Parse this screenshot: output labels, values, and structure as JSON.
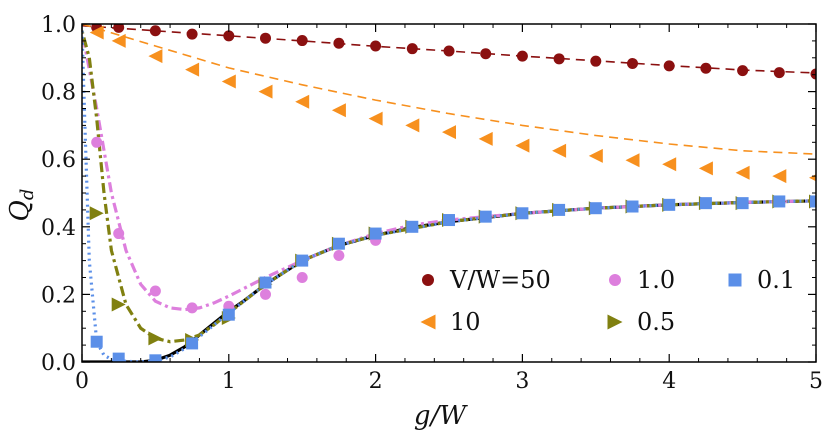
{
  "chart_data": {
    "type": "scatter",
    "title": "",
    "xlabel": "g/W",
    "ylabel": "Q_d",
    "xlim": [
      0,
      5
    ],
    "ylim": [
      0,
      1
    ],
    "x_ticks": [
      "0",
      "1",
      "2",
      "3",
      "4",
      "5"
    ],
    "y_ticks": [
      "0.0",
      "0.2",
      "0.4",
      "0.6",
      "0.8",
      "1.0"
    ],
    "legend_position": "lower-right",
    "series": [
      {
        "name": "V/W=50",
        "legend_label": "V/W=50",
        "marker": "circle",
        "color": "#8b1010",
        "x": [
          0.1,
          0.25,
          0.5,
          0.75,
          1.0,
          1.25,
          1.5,
          1.75,
          2.0,
          2.25,
          2.5,
          2.75,
          3.0,
          3.25,
          3.5,
          3.75,
          4.0,
          4.25,
          4.5,
          4.75,
          5.0
        ],
        "values": [
          0.99,
          0.99,
          0.98,
          0.97,
          0.965,
          0.958,
          0.951,
          0.943,
          0.935,
          0.927,
          0.92,
          0.912,
          0.905,
          0.897,
          0.89,
          0.883,
          0.876,
          0.869,
          0.862,
          0.856,
          0.852
        ],
        "line_x": [
          0,
          0.5,
          1.0,
          1.5,
          2.0,
          2.5,
          3.0,
          3.5,
          4.0,
          4.5,
          5.0
        ],
        "line_y": [
          0.995,
          0.98,
          0.965,
          0.95,
          0.934,
          0.92,
          0.905,
          0.891,
          0.877,
          0.864,
          0.855
        ]
      },
      {
        "name": "10",
        "legend_label": "10",
        "marker": "triangle-left",
        "color": "#f7901e",
        "x": [
          0.1,
          0.25,
          0.5,
          0.75,
          1.0,
          1.25,
          1.5,
          1.75,
          2.0,
          2.25,
          2.5,
          2.75,
          3.0,
          3.25,
          3.5,
          3.75,
          4.0,
          4.25,
          4.5,
          4.75,
          5.0
        ],
        "values": [
          0.975,
          0.95,
          0.905,
          0.865,
          0.83,
          0.8,
          0.77,
          0.745,
          0.72,
          0.7,
          0.68,
          0.66,
          0.64,
          0.625,
          0.61,
          0.597,
          0.585,
          0.573,
          0.56,
          0.55,
          0.545
        ],
        "line_x": [
          0,
          0.5,
          1.0,
          1.5,
          2.0,
          2.5,
          3.0,
          3.5,
          4.0,
          4.5,
          5.0
        ],
        "line_y": [
          1.0,
          0.935,
          0.87,
          0.82,
          0.775,
          0.735,
          0.7,
          0.67,
          0.645,
          0.625,
          0.615
        ]
      },
      {
        "name": "1.0",
        "legend_label": "1.0",
        "marker": "circle",
        "color": "#dd7fdd",
        "x": [
          0.1,
          0.25,
          0.5,
          0.75,
          1.0,
          1.25,
          1.5,
          1.75,
          2.0,
          2.25,
          2.5,
          2.75,
          3.0,
          3.25,
          3.5,
          3.75,
          4.0,
          4.25,
          4.5,
          4.75,
          5.0
        ],
        "values": [
          0.65,
          0.38,
          0.21,
          0.16,
          0.165,
          0.2,
          0.25,
          0.315,
          0.36,
          0.4,
          0.42,
          0.43,
          0.44,
          0.45,
          0.455,
          0.46,
          0.465,
          0.47,
          0.47,
          0.475,
          0.475
        ],
        "line_x": [
          0,
          0.1,
          0.2,
          0.3,
          0.4,
          0.5,
          0.6,
          0.7,
          0.8,
          0.9,
          1.0,
          1.25,
          1.5,
          1.75,
          2.0,
          2.25,
          2.5,
          3.0,
          3.5,
          4.0,
          4.5,
          5.0
        ],
        "line_y": [
          0.98,
          0.75,
          0.5,
          0.33,
          0.23,
          0.18,
          0.16,
          0.155,
          0.16,
          0.175,
          0.195,
          0.25,
          0.3,
          0.345,
          0.38,
          0.405,
          0.42,
          0.44,
          0.455,
          0.465,
          0.472,
          0.477
        ]
      },
      {
        "name": "0.5",
        "legend_label": "0.5",
        "marker": "triangle-right",
        "color": "#808010",
        "x": [
          0.1,
          0.25,
          0.5,
          0.75,
          1.0,
          1.25,
          1.5,
          1.75,
          2.0,
          2.25,
          2.5,
          2.75,
          3.0,
          3.25,
          3.5,
          3.75,
          4.0,
          4.25,
          4.5,
          4.75,
          5.0
        ],
        "values": [
          0.44,
          0.17,
          0.07,
          0.065,
          0.13,
          0.23,
          0.3,
          0.35,
          0.38,
          0.4,
          0.42,
          0.43,
          0.44,
          0.45,
          0.455,
          0.46,
          0.465,
          0.47,
          0.47,
          0.475,
          0.475
        ],
        "line_x": [
          0,
          0.05,
          0.1,
          0.15,
          0.2,
          0.3,
          0.4,
          0.5,
          0.6,
          0.7,
          0.8,
          0.9,
          1.0,
          1.25,
          1.5,
          1.75,
          2.0,
          2.5,
          3.0,
          3.5,
          4.0,
          4.5,
          5.0
        ],
        "line_y": [
          0.98,
          0.9,
          0.72,
          0.5,
          0.33,
          0.17,
          0.1,
          0.07,
          0.06,
          0.065,
          0.08,
          0.11,
          0.145,
          0.23,
          0.3,
          0.345,
          0.375,
          0.415,
          0.44,
          0.455,
          0.465,
          0.472,
          0.477
        ]
      },
      {
        "name": "0.1",
        "legend_label": "0.1",
        "marker": "square",
        "color": "#5b8fe8",
        "x": [
          0.1,
          0.25,
          0.5,
          0.75,
          1.0,
          1.25,
          1.5,
          1.75,
          2.0,
          2.25,
          2.5,
          2.75,
          3.0,
          3.25,
          3.5,
          3.75,
          4.0,
          4.25,
          4.5,
          4.75,
          5.0
        ],
        "values": [
          0.06,
          0.01,
          0.005,
          0.055,
          0.14,
          0.235,
          0.3,
          0.35,
          0.38,
          0.4,
          0.42,
          0.43,
          0.44,
          0.45,
          0.455,
          0.46,
          0.465,
          0.47,
          0.47,
          0.475,
          0.475
        ],
        "line_x": [
          0,
          0.02,
          0.05,
          0.1,
          0.15,
          0.2,
          0.3,
          0.4,
          0.5,
          0.6,
          0.7,
          0.8,
          0.9,
          1.0,
          1.25,
          1.5,
          1.75,
          2.0,
          2.5,
          3.0,
          3.5,
          4.0,
          4.5,
          5.0
        ],
        "line_y": [
          0.98,
          0.7,
          0.3,
          0.06,
          0.02,
          0.008,
          0.002,
          0.0,
          0.003,
          0.015,
          0.04,
          0.075,
          0.11,
          0.145,
          0.23,
          0.3,
          0.345,
          0.375,
          0.415,
          0.44,
          0.455,
          0.465,
          0.472,
          0.477
        ]
      }
    ],
    "reference_curve": {
      "name": "analytic-solid",
      "color": "#000000",
      "x": [
        0,
        0.1,
        0.2,
        0.3,
        0.4,
        0.5,
        0.6,
        0.7,
        0.8,
        0.9,
        1.0,
        1.1,
        1.25,
        1.5,
        1.75,
        2.0,
        2.25,
        2.5,
        3.0,
        3.5,
        4.0,
        4.5,
        5.0
      ],
      "y": [
        0.0,
        0.0,
        0.0,
        0.0,
        0.0,
        0.005,
        0.02,
        0.045,
        0.08,
        0.115,
        0.15,
        0.18,
        0.23,
        0.3,
        0.345,
        0.375,
        0.398,
        0.415,
        0.44,
        0.455,
        0.465,
        0.472,
        0.477
      ]
    }
  }
}
